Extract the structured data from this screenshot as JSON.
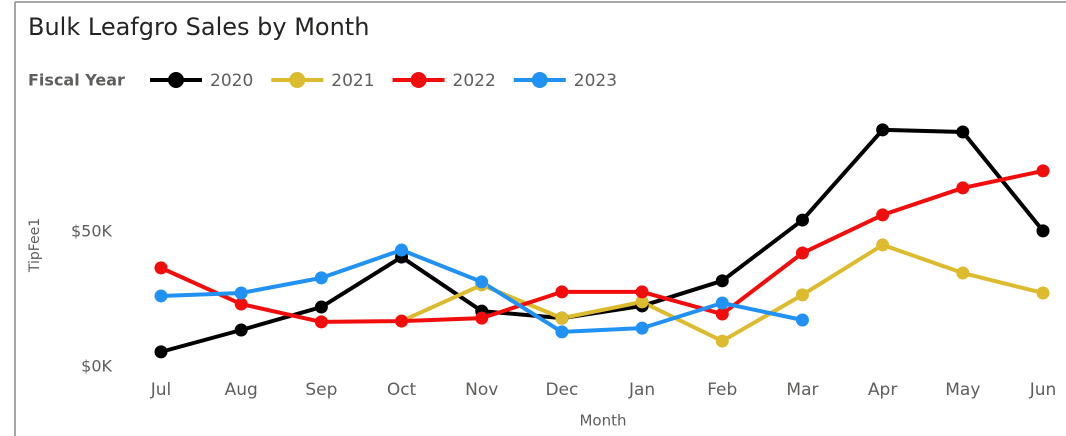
{
  "chart_data": {
    "type": "line",
    "title": "Bulk Leafgro Sales by Month",
    "legend_title": "Fiscal Year",
    "x_label": "Month",
    "y_label": "TipFee1",
    "categories": [
      "Jul",
      "Aug",
      "Sep",
      "Oct",
      "Nov",
      "Dec",
      "Jan",
      "Feb",
      "Mar",
      "Apr",
      "May",
      "Jun"
    ],
    "series": [
      {
        "name": "2020",
        "color": "#000000",
        "values": [
          5600,
          13700,
          22200,
          40700,
          20700,
          18100,
          22600,
          31900,
          54400,
          87800,
          87000,
          50400
        ]
      },
      {
        "name": "2021",
        "color": "#dcbc2e",
        "values": [
          null,
          null,
          null,
          17000,
          30400,
          18100,
          24100,
          9600,
          26700,
          45200,
          34800,
          27400
        ]
      },
      {
        "name": "2022",
        "color": "#f20d0d",
        "values": [
          36700,
          23300,
          16700,
          17000,
          18100,
          27800,
          27800,
          19600,
          42200,
          56300,
          66300,
          72600
        ]
      },
      {
        "name": "2023",
        "color": "#2191f3",
        "values": [
          26300,
          27400,
          33000,
          43300,
          31500,
          13000,
          14400,
          23700,
          17400,
          null,
          null,
          null
        ]
      }
    ],
    "ylim": [
      0,
      97000
    ],
    "yticks": [
      {
        "value": 0,
        "label": "$0K"
      },
      {
        "value": 50000,
        "label": "$50K"
      }
    ],
    "grid": false
  }
}
